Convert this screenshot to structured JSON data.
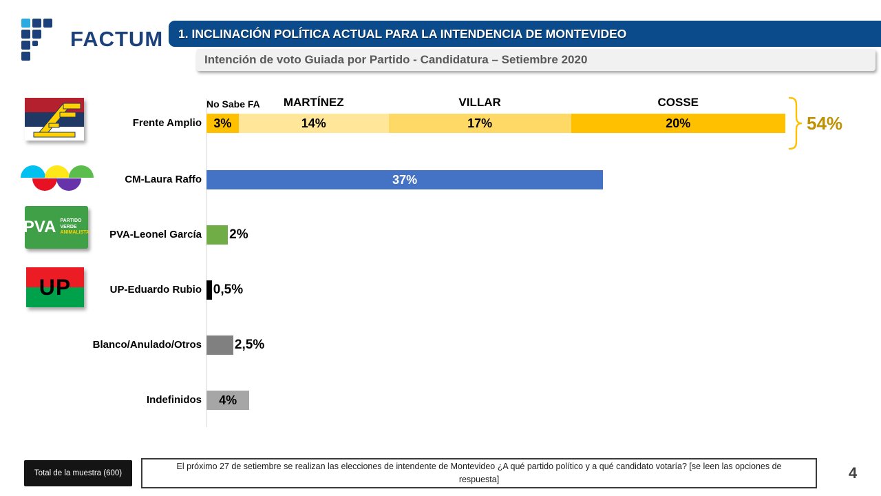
{
  "brand": {
    "name": "FACTUM"
  },
  "header": {
    "title": "1. INCLINACIÓN POLÍTICA ACTUAL PARA LA INTENDENCIA DE MONTEVIDEO",
    "subtitle": "Intención de voto Guiada por Partido - Candidatura – Setiembre 2020"
  },
  "chart_data": {
    "type": "bar",
    "orientation": "horizontal",
    "unit": "%",
    "value_axis_hidden": true,
    "rows": [
      {
        "label": "Frente Amplio",
        "logo": "frente-amplio-flag",
        "segments": [
          {
            "header": "No Sabe FA",
            "header_small": true,
            "value": 3,
            "display": "3%",
            "color": "#FFC000",
            "value_inside": true
          },
          {
            "header": "MARTÍNEZ",
            "value": 14,
            "display": "14%",
            "color": "#FFE699",
            "value_inside": true
          },
          {
            "header": "VILLAR",
            "value": 17,
            "display": "17%",
            "color": "#FFD966",
            "value_inside": true
          },
          {
            "header": "COSSE",
            "value": 20,
            "display": "20%",
            "color": "#FFC000",
            "value_inside": true
          }
        ],
        "total": {
          "value": 54,
          "display": "54%",
          "color": "#BF9000",
          "bracket_color": "#FFC000"
        }
      },
      {
        "label": "CM-Laura Raffo",
        "logo": "coalicion-multicolor",
        "segments": [
          {
            "value": 37,
            "display": "37%",
            "color": "#4472C4",
            "text_color": "#FFFFFF",
            "value_inside": true
          }
        ]
      },
      {
        "label": "PVA-Leonel García",
        "logo": "partido-verde-animalista",
        "segments": [
          {
            "value": 2,
            "display": "2%",
            "color": "#70AD47",
            "value_inside": false
          }
        ]
      },
      {
        "label": "UP-Eduardo Rubio",
        "logo": "unidad-popular",
        "segments": [
          {
            "value": 0.5,
            "display": "0,5%",
            "color": "#000000",
            "value_inside": false
          }
        ]
      },
      {
        "label": "Blanco/Anulado/Otros",
        "segments": [
          {
            "value": 2.5,
            "display": "2,5%",
            "color": "#808080",
            "value_inside": false
          }
        ]
      },
      {
        "label": "Indefinidos",
        "segments": [
          {
            "value": 4,
            "display": "4%",
            "color": "#A6A6A6",
            "value_inside": true
          }
        ]
      }
    ]
  },
  "logos": {
    "pva": {
      "abbr": "PVA",
      "lines": [
        "PARTIDO",
        "VERDE",
        "ANIMALISTA"
      ],
      "bg": "#3FA047",
      "accent": "#FFD100"
    },
    "up": {
      "abbr": "UP",
      "top_color": "#EC1C24",
      "bottom_color": "#00A14B"
    },
    "frente_amplio": {
      "red": "#B5202F",
      "blue": "#1F3864",
      "emblem": "#FFD100"
    },
    "coalicion_colors": [
      "#00C0F0",
      "#FFE81A",
      "#5BBE4C",
      "#E81123",
      "#6633AA"
    ]
  },
  "footer": {
    "sample_label": "Total de la muestra (600)",
    "question": "El próximo 27 de setiembre se realizan las elecciones de intendente de Montevideo ¿A qué partido político y a qué candidato votaría? [se leen las opciones de respuesta]",
    "page_number": "4"
  },
  "theme": {
    "banner_blue": "#0B4B8C",
    "subtitle_bg": "#F1F1F1",
    "subtitle_text": "#595959",
    "axis_line": "#D9D9D9",
    "brand_blue": "#1C4079",
    "brand_accent": "#29ABE2",
    "total_text": "#BF9000"
  }
}
